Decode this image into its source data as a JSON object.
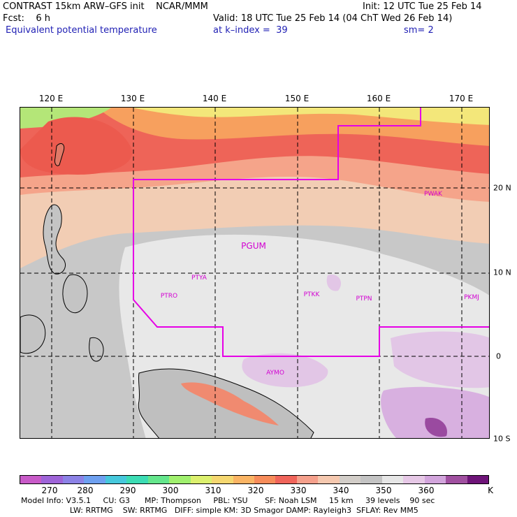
{
  "header": {
    "title_left": "CONTRAST 15km ARW–GFS init    NCAR/MMM",
    "init": "Init: 12 UTC Tue 25 Feb 14",
    "fcst_label": "Fcst:    6 h",
    "valid": "Valid: 18 UTC Tue 25 Feb 14 (04 ChT Wed 26 Feb 14)",
    "field": "Equivalent potential temperature",
    "level": "at k–index =  39",
    "smoothing": "sm= 2"
  },
  "map": {
    "lon_labels": [
      "120 E",
      "130 E",
      "140 E",
      "150 E",
      "160 E",
      "170 E"
    ],
    "lat_labels": [
      "20 N",
      "10 N",
      "0",
      "10 S"
    ],
    "stations": [
      {
        "id": "PGUM",
        "big": true
      },
      {
        "id": "PTYA"
      },
      {
        "id": "PTRO"
      },
      {
        "id": "PTKK"
      },
      {
        "id": "PTPN"
      },
      {
        "id": "PKMJ"
      },
      {
        "id": "PWAK"
      },
      {
        "id": "AYMO"
      }
    ]
  },
  "colorbar": {
    "colors": [
      "#c85ac8",
      "#9e64d8",
      "#8c82e6",
      "#6ea0f0",
      "#46c8dc",
      "#3cdcb4",
      "#64e68c",
      "#a0f06e",
      "#dcf06e",
      "#f5d770",
      "#fab464",
      "#f78c5a",
      "#f0645a",
      "#f5a08c",
      "#f5c8af",
      "#d2cdc8",
      "#c3c3c3",
      "#e6e6e6",
      "#e6c8e6",
      "#d2a5dc",
      "#a050a0",
      "#6e1478"
    ],
    "labels": [
      "270",
      "280",
      "290",
      "300",
      "310",
      "320",
      "330",
      "340",
      "350",
      "360",
      "K"
    ],
    "unit": "K"
  },
  "footer": {
    "line1": "Model Info: V3.5.1     CU: G3      MP: Thompson     PBL: YSU       SF: Noah LSM     15 km     39 levels    90 sec",
    "line2": "                    LW: RRTMG    SW: RRTMG   DIFF: simple KM: 3D Smagor DAMP: Rayleigh3  SFLAY: Rev MM5"
  }
}
